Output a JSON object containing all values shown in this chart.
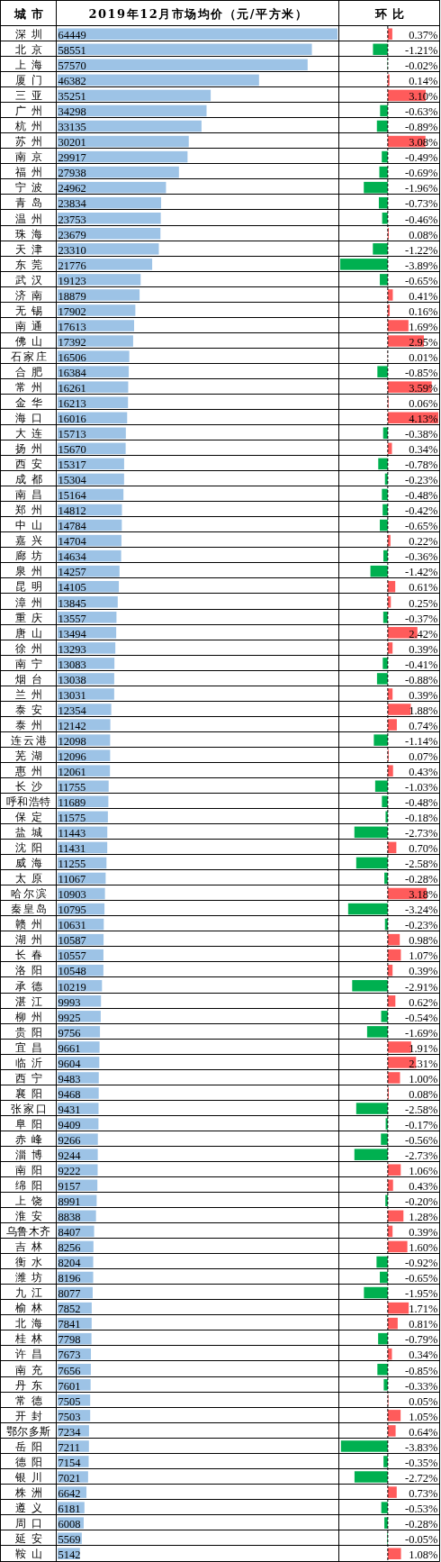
{
  "chart_data": [
    {
      "type": "bar",
      "orientation": "horizontal",
      "title": "2019年12月市场均价（元/平方米）",
      "ylabel": "城市",
      "tick_labels": "y",
      "data_labels": true,
      "color": "#9dc3e6",
      "categories": [
        "深圳",
        "北京",
        "上海",
        "厦门",
        "三亚",
        "广州",
        "杭州",
        "苏州",
        "南京",
        "福州",
        "宁波",
        "青岛",
        "温州",
        "珠海",
        "天津",
        "东莞",
        "武汉",
        "济南",
        "无锡",
        "南通",
        "佛山",
        "石家庄",
        "合肥",
        "常州",
        "金华",
        "海口",
        "大连",
        "扬州",
        "西安",
        "成都",
        "南昌",
        "郑州",
        "中山",
        "嘉兴",
        "廊坊",
        "泉州",
        "昆明",
        "漳州",
        "重庆",
        "唐山",
        "徐州",
        "南宁",
        "烟台",
        "兰州",
        "泰安",
        "泰州",
        "连云港",
        "芜湖",
        "惠州",
        "长沙",
        "呼和浩特",
        "保定",
        "盐城",
        "沈阳",
        "威海",
        "太原",
        "哈尔滨",
        "秦皇岛",
        "赣州",
        "湖州",
        "长春",
        "洛阳",
        "承德",
        "湛江",
        "柳州",
        "贵阳",
        "宜昌",
        "临沂",
        "西宁",
        "襄阳",
        "张家口",
        "阜阳",
        "赤峰",
        "淄博",
        "南阳",
        "绵阳",
        "上饶",
        "淮安",
        "乌鲁木齐",
        "吉林",
        "衡水",
        "潍坊",
        "九江",
        "榆林",
        "北海",
        "桂林",
        "许昌",
        "南充",
        "丹东",
        "常德",
        "开封",
        "鄂尔多斯",
        "岳阳",
        "德阳",
        "银川",
        "株洲",
        "遵义",
        "周口",
        "延安",
        "鞍山"
      ],
      "values": [
        64449,
        58551,
        57570,
        46382,
        35251,
        34298,
        33135,
        30201,
        29917,
        27938,
        24962,
        23834,
        23753,
        23679,
        23310,
        21776,
        19123,
        18879,
        17902,
        17613,
        17392,
        16506,
        16384,
        16261,
        16213,
        16016,
        15713,
        15670,
        15317,
        15304,
        15164,
        14812,
        14784,
        14704,
        14634,
        14257,
        14105,
        13845,
        13557,
        13494,
        13293,
        13083,
        13038,
        13031,
        12354,
        12142,
        12098,
        12096,
        12061,
        11755,
        11689,
        11575,
        11443,
        11431,
        11255,
        11067,
        10903,
        10795,
        10631,
        10587,
        10557,
        10548,
        10219,
        9993,
        9925,
        9756,
        9661,
        9604,
        9483,
        9468,
        9431,
        9409,
        9266,
        9244,
        9222,
        9157,
        8991,
        8838,
        8407,
        8256,
        8204,
        8196,
        8077,
        7852,
        7841,
        7798,
        7673,
        7656,
        7601,
        7505,
        7503,
        7234,
        7211,
        7154,
        7021,
        6642,
        6181,
        6008,
        5569,
        5142
      ]
    },
    {
      "type": "bar",
      "orientation": "horizontal",
      "title": "环比",
      "tick_labels": false,
      "categories": [
        null,
        null,
        null,
        null,
        null,
        null,
        null,
        null,
        null,
        null,
        null,
        null,
        null,
        null,
        null,
        null,
        null,
        null,
        null,
        null,
        null,
        null,
        null,
        null,
        null,
        null,
        null,
        null,
        null,
        null,
        null,
        null,
        null,
        null,
        null,
        null,
        null,
        null,
        null,
        null,
        null,
        null,
        null,
        null,
        null,
        null,
        null,
        null,
        null,
        null,
        null,
        null,
        null,
        null,
        null,
        null,
        null,
        null,
        null,
        null,
        null,
        null,
        null,
        null,
        null,
        null,
        null,
        null,
        null,
        null,
        null,
        null,
        null,
        null,
        null,
        null,
        null,
        null,
        null,
        null,
        null,
        null,
        null,
        null,
        null,
        null,
        null,
        null,
        null,
        null,
        null,
        null,
        null,
        null,
        null,
        null,
        null,
        null,
        null,
        null
      ],
      "values": [
        0.37,
        -1.21,
        -0.02,
        0.14,
        3.1,
        -0.63,
        -0.89,
        3.08,
        -0.49,
        -0.69,
        -1.96,
        -0.73,
        -0.46,
        0.08,
        -1.22,
        -3.89,
        -0.65,
        0.41,
        0.16,
        1.69,
        2.95,
        0.01,
        -0.85,
        3.59,
        0.06,
        4.13,
        -0.38,
        0.34,
        -0.78,
        -0.23,
        -0.48,
        -0.42,
        -0.65,
        0.22,
        -0.36,
        -1.42,
        0.61,
        0.25,
        -0.37,
        2.42,
        0.39,
        -0.41,
        -0.88,
        0.39,
        1.88,
        0.74,
        -1.14,
        0.07,
        0.43,
        -1.03,
        -0.48,
        -0.18,
        -2.73,
        0.7,
        -2.58,
        -0.28,
        3.18,
        -3.24,
        -0.23,
        0.98,
        1.07,
        0.39,
        -2.91,
        0.62,
        -0.54,
        -1.69,
        1.91,
        2.31,
        1.0,
        0.08,
        -2.58,
        -0.17,
        -0.56,
        -2.73,
        1.06,
        0.43,
        -0.2,
        1.28,
        0.39,
        1.6,
        -0.92,
        -0.65,
        -1.95,
        1.71,
        0.81,
        -0.79,
        0.34,
        -0.85,
        -0.33,
        0.05,
        1.05,
        0.64,
        -3.83,
        -0.35,
        -2.72,
        0.73,
        -0.53,
        -0.28,
        -0.05,
        1.08
      ],
      "value_labels": [
        "0.37%",
        "-1.21%",
        "-0.02%",
        "0.14%",
        "3.10%",
        "-0.63%",
        "-0.89%",
        "3.08%",
        "-0.49%",
        "-0.69%",
        "-1.96%",
        "-0.73%",
        "-0.46%",
        "0.08%",
        "-1.22%",
        "-3.89%",
        "-0.65%",
        "0.41%",
        "0.16%",
        "1.69%",
        "2.95%",
        "0.01%",
        "-0.85%",
        "3.59%",
        "0.06%",
        "4.13%",
        "-0.38%",
        "0.34%",
        "-0.78%",
        "-0.23%",
        "-0.48%",
        "-0.42%",
        "-0.65%",
        "0.22%",
        "-0.36%",
        "-1.42%",
        "0.61%",
        "0.25%",
        "-0.37%",
        "2.42%",
        "0.39%",
        "-0.41%",
        "-0.88%",
        "0.39%",
        "1.88%",
        "0.74%",
        "-1.14%",
        "0.07%",
        "0.43%",
        "-1.03%",
        "-0.48%",
        "-0.18%",
        "-2.73%",
        "0.70%",
        "-2.58%",
        "-0.28%",
        "3.18%",
        "-3.24%",
        "-0.23%",
        "0.98%",
        "1.07%",
        "0.39%",
        "-2.91%",
        "0.62%",
        "-0.54%",
        "-1.69%",
        "1.91%",
        "2.31%",
        "1.00%",
        "0.08%",
        "-2.58%",
        "-0.17%",
        "-0.56%",
        "-2.73%",
        "1.06%",
        "0.43%",
        "-0.20%",
        "1.28%",
        "0.39%",
        "1.60%",
        "-0.92%",
        "-0.65%",
        "-1.95%",
        "1.71%",
        "0.81%",
        "-0.79%",
        "0.34%",
        "-0.85%",
        "-0.33%",
        "0.05%",
        "1.05%",
        "0.64%",
        "-3.83%",
        "-0.35%",
        "-2.72%",
        "0.73%",
        "-0.53%",
        "-0.28%",
        "-0.05%",
        "1.08%"
      ],
      "colors": [
        "#ff5b5b",
        "#00b050",
        "#00b050",
        "#ff5b5b",
        "#ff5b5b",
        "#00b050",
        "#00b050",
        "#ff5b5b",
        "#00b050",
        "#00b050",
        "#00b050",
        "#00b050",
        "#00b050",
        "#ff5b5b",
        "#00b050",
        "#00b050",
        "#00b050",
        "#ff5b5b",
        "#ff5b5b",
        "#ff5b5b",
        "#ff5b5b",
        "#ff5b5b",
        "#00b050",
        "#ff5b5b",
        "#ff5b5b",
        "#ff5b5b",
        "#00b050",
        "#ff5b5b",
        "#00b050",
        "#00b050",
        "#00b050",
        "#00b050",
        "#00b050",
        "#ff5b5b",
        "#00b050",
        "#00b050",
        "#ff5b5b",
        "#ff5b5b",
        "#00b050",
        "#ff5b5b",
        "#ff5b5b",
        "#00b050",
        "#00b050",
        "#ff5b5b",
        "#ff5b5b",
        "#ff5b5b",
        "#00b050",
        "#ff5b5b",
        "#ff5b5b",
        "#00b050",
        "#00b050",
        "#00b050",
        "#00b050",
        "#ff5b5b",
        "#00b050",
        "#00b050",
        "#ff5b5b",
        "#00b050",
        "#00b050",
        "#ff5b5b",
        "#ff5b5b",
        "#ff5b5b",
        "#00b050",
        "#ff5b5b",
        "#00b050",
        "#00b050",
        "#ff5b5b",
        "#ff5b5b",
        "#ff5b5b",
        "#ff5b5b",
        "#00b050",
        "#00b050",
        "#00b050",
        "#00b050",
        "#ff5b5b",
        "#ff5b5b",
        "#00b050",
        "#ff5b5b",
        "#ff5b5b",
        "#ff5b5b",
        "#00b050",
        "#00b050",
        "#00b050",
        "#ff5b5b",
        "#ff5b5b",
        "#00b050",
        "#ff5b5b",
        "#00b050",
        "#00b050",
        "#ff5b5b",
        "#ff5b5b",
        "#ff5b5b",
        "#00b050",
        "#00b050",
        "#00b050",
        "#ff5b5b",
        "#00b050",
        "#00b050",
        "#00b050",
        "#ff5b5b"
      ],
      "ref_lines": [
        {
          "axis": "x",
          "value": 0,
          "color": "#000000",
          "line_style": "dashed"
        }
      ]
    }
  ]
}
